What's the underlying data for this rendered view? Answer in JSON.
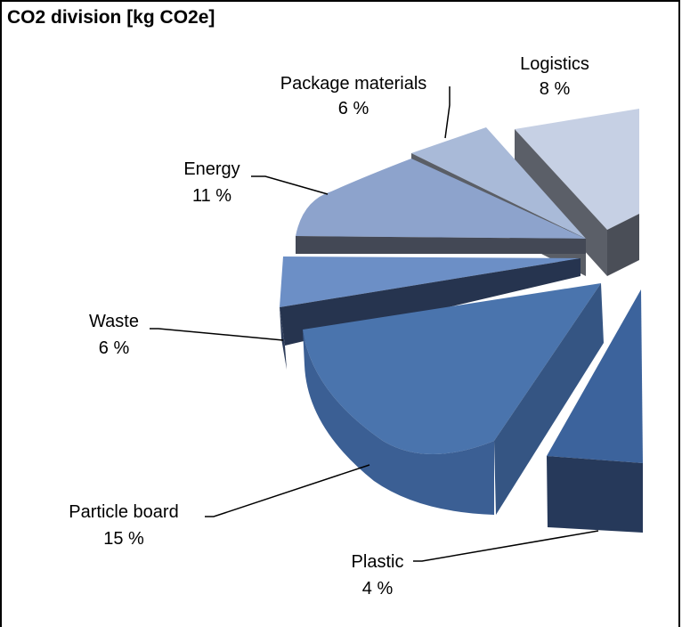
{
  "chart_data": {
    "type": "pie",
    "title": "CO2 division [kg CO2e]",
    "slices": [
      {
        "label": "Logistics",
        "value": 8,
        "display": "8 %",
        "color": "#c6d0e4"
      },
      {
        "label": "Package materials",
        "value": 6,
        "display": "6 %",
        "color": "#a9bad8"
      },
      {
        "label": "Energy",
        "value": 11,
        "display": "11 %",
        "color": "#8da3cc"
      },
      {
        "label": "Waste",
        "value": 6,
        "display": "6 %",
        "color": "#6c8fc6"
      },
      {
        "label": "Particle board",
        "value": 15,
        "display": "15 %",
        "color": "#4a74ad"
      },
      {
        "label": "Plastic",
        "value": 4,
        "display": "4 %",
        "color": "#3c639c"
      }
    ],
    "legend": "none",
    "style": "3d-exploded-pie"
  }
}
